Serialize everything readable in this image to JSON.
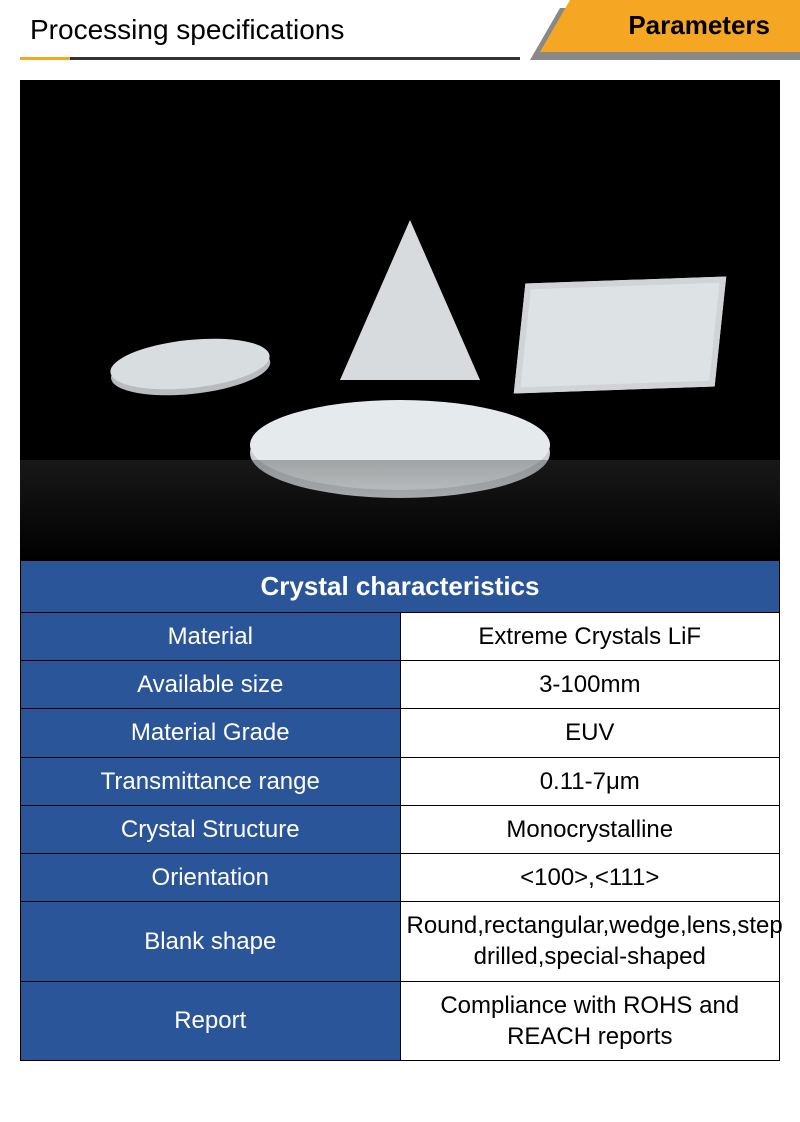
{
  "header": {
    "title": "Processing specifications",
    "badge": "Parameters",
    "underline_color": "#333333",
    "accent_color": "#f5a623",
    "badge_bg": "#f5a623",
    "badge_shadow": "#888888"
  },
  "image": {
    "background_color": "#000000",
    "shape_color_light": "#e5eaec",
    "shape_color_mid": "#d8dde0",
    "description": "optical-crystal-blanks"
  },
  "table": {
    "title": "Crystal characteristics",
    "title_bg": "#2a5599",
    "title_color": "#ffffff",
    "label_bg": "#2a5599",
    "label_color": "#ffffff",
    "value_bg": "#ffffff",
    "value_color": "#000000",
    "border_color": "#000000",
    "label_fontsize": 24,
    "value_fontsize": 24,
    "rows": [
      {
        "label": "Material",
        "value": "Extreme Crystals LiF"
      },
      {
        "label": "Available size",
        "value": "3-100mm"
      },
      {
        "label": "Material Grade",
        "value": "EUV"
      },
      {
        "label": "Transmittance range",
        "value": "0.11-7μm"
      },
      {
        "label": "Crystal Structure",
        "value": "Monocrystalline"
      },
      {
        "label": "Orientation",
        "value": "<100>,<111>"
      },
      {
        "label": "Blank shape",
        "value": "Round,rectangular,wedge,lens,step drilled,special-shaped"
      },
      {
        "label": "Report",
        "value": "Compliance with ROHS and REACH reports"
      }
    ]
  }
}
